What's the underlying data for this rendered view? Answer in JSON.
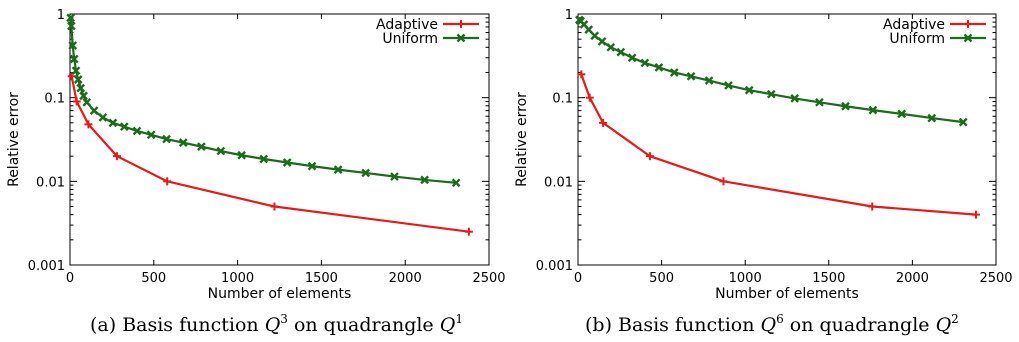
{
  "chart_data": [
    {
      "type": "line",
      "caption": {
        "prefix": "(a)  Basis function ",
        "basis_symbol": "Q",
        "basis_power": "3",
        "middle": " on quadrangle ",
        "quad_symbol": "Q",
        "quad_power": "1"
      },
      "xlabel": "Number of elements",
      "ylabel": "Relative error",
      "xlim": [
        0,
        2500
      ],
      "ylim": [
        0.001,
        1
      ],
      "yscale": "log",
      "x_ticks": [
        "0",
        "500",
        "1000",
        "1500",
        "2000",
        "2500"
      ],
      "y_ticks": [
        "0.001",
        "0.01",
        "0.1",
        "1"
      ],
      "legend_position": "top-right",
      "series": [
        {
          "name": "Adaptive",
          "color": "#e41a1c",
          "marker": "plus",
          "points": [
            [
              10,
              0.18
            ],
            [
              40,
              0.09
            ],
            [
              110,
              0.048
            ],
            [
              280,
              0.02
            ],
            [
              580,
              0.01
            ],
            [
              1220,
              0.005
            ],
            [
              2380,
              0.0025
            ]
          ]
        },
        {
          "name": "Uniform",
          "color": "#1a6b1a",
          "marker": "cross",
          "points": [
            [
              4,
              0.9
            ],
            [
              8,
              0.72
            ],
            [
              16,
              0.42
            ],
            [
              25,
              0.29
            ],
            [
              36,
              0.21
            ],
            [
              49,
              0.165
            ],
            [
              64,
              0.13
            ],
            [
              81,
              0.105
            ],
            [
              100,
              0.088
            ],
            [
              144,
              0.07
            ],
            [
              196,
              0.058
            ],
            [
              256,
              0.05
            ],
            [
              324,
              0.045
            ],
            [
              400,
              0.04
            ],
            [
              484,
              0.036
            ],
            [
              576,
              0.032
            ],
            [
              676,
              0.029
            ],
            [
              784,
              0.026
            ],
            [
              900,
              0.023
            ],
            [
              1024,
              0.0205
            ],
            [
              1156,
              0.0185
            ],
            [
              1296,
              0.0168
            ],
            [
              1444,
              0.0152
            ],
            [
              1600,
              0.0138
            ],
            [
              1764,
              0.0126
            ],
            [
              1936,
              0.0114
            ],
            [
              2116,
              0.0104
            ],
            [
              2304,
              0.0096
            ]
          ]
        }
      ]
    },
    {
      "type": "line",
      "caption": {
        "prefix": "(b)  Basis function ",
        "basis_symbol": "Q",
        "basis_power": "6",
        "middle": " on quadrangle ",
        "quad_symbol": "Q",
        "quad_power": "2"
      },
      "xlabel": "Number of elements",
      "ylabel": "Relative error",
      "xlim": [
        0,
        2500
      ],
      "ylim": [
        0.001,
        1
      ],
      "yscale": "log",
      "x_ticks": [
        "0",
        "500",
        "1000",
        "1500",
        "2000",
        "2500"
      ],
      "y_ticks": [
        "0.001",
        "0.01",
        "0.1",
        "1"
      ],
      "legend_position": "top-right",
      "series": [
        {
          "name": "Adaptive",
          "color": "#e41a1c",
          "marker": "plus",
          "points": [
            [
              20,
              0.19
            ],
            [
              70,
              0.1
            ],
            [
              150,
              0.05
            ],
            [
              430,
              0.02
            ],
            [
              870,
              0.01
            ],
            [
              1760,
              0.005
            ],
            [
              2380,
              0.004
            ]
          ]
        },
        {
          "name": "Uniform",
          "color": "#1a6b1a",
          "marker": "cross",
          "points": [
            [
              8,
              0.85
            ],
            [
              16,
              0.82
            ],
            [
              36,
              0.75
            ],
            [
              64,
              0.65
            ],
            [
              100,
              0.55
            ],
            [
              144,
              0.47
            ],
            [
              196,
              0.4
            ],
            [
              256,
              0.35
            ],
            [
              324,
              0.3
            ],
            [
              400,
              0.26
            ],
            [
              484,
              0.23
            ],
            [
              576,
              0.2
            ],
            [
              676,
              0.18
            ],
            [
              784,
              0.16
            ],
            [
              900,
              0.14
            ],
            [
              1024,
              0.123
            ],
            [
              1156,
              0.11
            ],
            [
              1296,
              0.098
            ],
            [
              1444,
              0.088
            ],
            [
              1600,
              0.079
            ],
            [
              1764,
              0.071
            ],
            [
              1936,
              0.064
            ],
            [
              2116,
              0.057
            ],
            [
              2304,
              0.051
            ]
          ]
        }
      ]
    }
  ]
}
